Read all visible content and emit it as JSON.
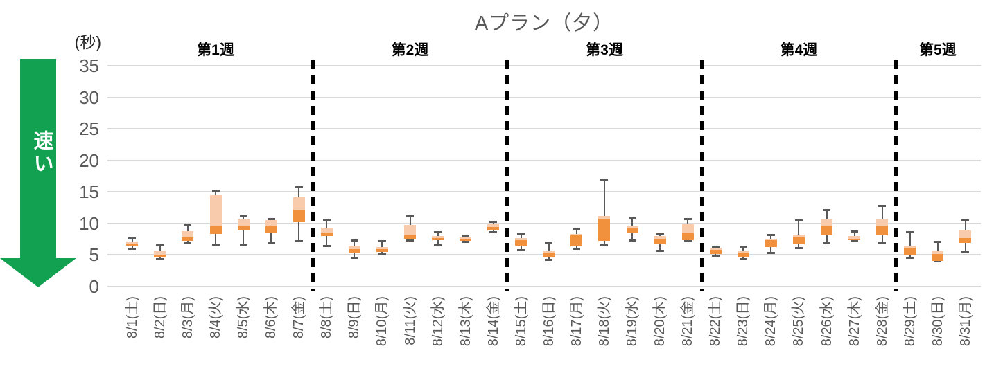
{
  "title": "Aプラン（夕）",
  "y_axis": {
    "unit_label": "(秒)",
    "min": 0,
    "max": 35,
    "tick_step": 5,
    "ticks": [
      0,
      5,
      10,
      15,
      20,
      25,
      30,
      35
    ]
  },
  "fast_arrow": {
    "label": "速い"
  },
  "weeks": [
    {
      "label": "第1週",
      "from": 0,
      "to": 6
    },
    {
      "label": "第2週",
      "from": 7,
      "to": 13
    },
    {
      "label": "第3週",
      "from": 14,
      "to": 20
    },
    {
      "label": "第4週",
      "from": 21,
      "to": 27
    },
    {
      "label": "第5週",
      "from": 28,
      "to": 30
    }
  ],
  "colors": {
    "box_upper": "#F8CBAD",
    "box_lower": "#F2913D",
    "whisker": "#595959",
    "gridline": "#D9D9D9",
    "separator": "#000000",
    "title_text": "#595959",
    "tick_text": "#595959",
    "unit_text": "#262626",
    "date_text": "#595959",
    "week_text": "#000000",
    "arrow": "#11A150",
    "arrow_text": "#FFFFFF"
  },
  "chart_data": {
    "type": "boxplot",
    "title": "Aプラン（夕）",
    "ylabel": "(秒)",
    "ylim": [
      0,
      35
    ],
    "grid": true,
    "categories": [
      "8/1(土)",
      "8/2(日)",
      "8/3(月)",
      "8/4(火)",
      "8/5(水)",
      "8/6(木)",
      "8/7(金)",
      "8/8(土)",
      "8/9(日)",
      "8/10(月)",
      "8/11(火)",
      "8/12(水)",
      "8/13(木)",
      "8/14(金)",
      "8/15(土)",
      "8/16(日)",
      "8/17(月)",
      "8/18(火)",
      "8/19(水)",
      "8/20(木)",
      "8/21(金)",
      "8/22(土)",
      "8/23(日)",
      "8/24(月)",
      "8/25(火)",
      "8/26(水)",
      "8/27(木)",
      "8/28(金)",
      "8/29(土)",
      "8/30(日)",
      "8/31(月)"
    ],
    "days": [
      {
        "label": "8/1(土)",
        "min": 5.9,
        "q1": 6.5,
        "median": 6.8,
        "q3": 7.1,
        "max": 7.7
      },
      {
        "label": "8/2(日)",
        "min": 4.3,
        "q1": 4.6,
        "median": 5.1,
        "q3": 5.7,
        "max": 6.6
      },
      {
        "label": "8/3(月)",
        "min": 6.9,
        "q1": 7.2,
        "median": 7.8,
        "q3": 8.8,
        "max": 9.9
      },
      {
        "label": "8/4(火)",
        "min": 6.6,
        "q1": 8.3,
        "median": 9.5,
        "q3": 14.5,
        "max": 15.1
      },
      {
        "label": "8/5(水)",
        "min": 6.5,
        "q1": 8.9,
        "median": 9.5,
        "q3": 10.8,
        "max": 11.2
      },
      {
        "label": "8/6(木)",
        "min": 6.9,
        "q1": 8.6,
        "median": 9.6,
        "q3": 10.5,
        "max": 10.8
      },
      {
        "label": "8/7(金)",
        "min": 7.1,
        "q1": 10.2,
        "median": 12.2,
        "q3": 14.2,
        "max": 15.8
      },
      {
        "label": "8/8(土)",
        "min": 6.4,
        "q1": 8.0,
        "median": 8.5,
        "q3": 9.3,
        "max": 10.6
      },
      {
        "label": "8/9(日)",
        "min": 4.5,
        "q1": 5.4,
        "median": 5.9,
        "q3": 6.4,
        "max": 7.4
      },
      {
        "label": "8/10(月)",
        "min": 5.1,
        "q1": 5.5,
        "median": 5.9,
        "q3": 6.2,
        "max": 7.2
      },
      {
        "label": "8/11(火)",
        "min": 7.2,
        "q1": 7.6,
        "median": 8.1,
        "q3": 9.8,
        "max": 11.2
      },
      {
        "label": "8/12(水)",
        "min": 6.5,
        "q1": 7.3,
        "median": 7.7,
        "q3": 8.0,
        "max": 8.7
      },
      {
        "label": "8/13(木)",
        "min": 7.0,
        "q1": 7.2,
        "median": 7.5,
        "q3": 7.8,
        "max": 8.1
      },
      {
        "label": "8/14(金)",
        "min": 8.6,
        "q1": 8.9,
        "median": 9.4,
        "q3": 9.9,
        "max": 10.3
      },
      {
        "label": "8/15(土)",
        "min": 5.7,
        "q1": 6.5,
        "median": 7.3,
        "q3": 7.7,
        "max": 8.5
      },
      {
        "label": "8/16(日)",
        "min": 4.2,
        "q1": 4.6,
        "median": 5.4,
        "q3": 5.6,
        "max": 7.0
      },
      {
        "label": "8/17(月)",
        "min": 5.9,
        "q1": 6.4,
        "median": 8.1,
        "q3": 8.3,
        "max": 9.1
      },
      {
        "label": "8/18(火)",
        "min": 6.5,
        "q1": 7.2,
        "median": 10.8,
        "q3": 11.2,
        "max": 17.0
      },
      {
        "label": "8/19(水)",
        "min": 7.2,
        "q1": 8.5,
        "median": 9.3,
        "q3": 9.7,
        "max": 10.9
      },
      {
        "label": "8/20(木)",
        "min": 5.6,
        "q1": 6.7,
        "median": 7.6,
        "q3": 8.0,
        "max": 8.5
      },
      {
        "label": "8/21(金)",
        "min": 7.1,
        "q1": 7.4,
        "median": 8.5,
        "q3": 10.0,
        "max": 10.7
      },
      {
        "label": "8/22(土)",
        "min": 4.8,
        "q1": 5.2,
        "median": 5.8,
        "q3": 6.1,
        "max": 6.4
      },
      {
        "label": "8/23(日)",
        "min": 4.3,
        "q1": 4.7,
        "median": 5.4,
        "q3": 5.6,
        "max": 6.2
      },
      {
        "label": "8/24(月)",
        "min": 5.3,
        "q1": 6.3,
        "median": 7.4,
        "q3": 7.6,
        "max": 8.2
      },
      {
        "label": "8/25(火)",
        "min": 6.0,
        "q1": 6.7,
        "median": 7.8,
        "q3": 8.2,
        "max": 10.5
      },
      {
        "label": "8/26(水)",
        "min": 6.8,
        "q1": 8.1,
        "median": 9.5,
        "q3": 10.7,
        "max": 12.2
      },
      {
        "label": "8/27(木)",
        "min": 7.2,
        "q1": 7.4,
        "median": 7.6,
        "q3": 8.0,
        "max": 8.8
      },
      {
        "label": "8/28(金)",
        "min": 6.9,
        "q1": 8.1,
        "median": 9.7,
        "q3": 10.8,
        "max": 12.8
      },
      {
        "label": "8/29(土)",
        "min": 4.5,
        "q1": 5.0,
        "median": 6.1,
        "q3": 6.5,
        "max": 8.7
      },
      {
        "label": "8/30(日)",
        "min": 3.9,
        "q1": 4.1,
        "median": 5.2,
        "q3": 5.6,
        "max": 7.1
      },
      {
        "label": "8/31(月)",
        "min": 5.4,
        "q1": 6.9,
        "median": 7.7,
        "q3": 8.9,
        "max": 10.5
      }
    ]
  }
}
